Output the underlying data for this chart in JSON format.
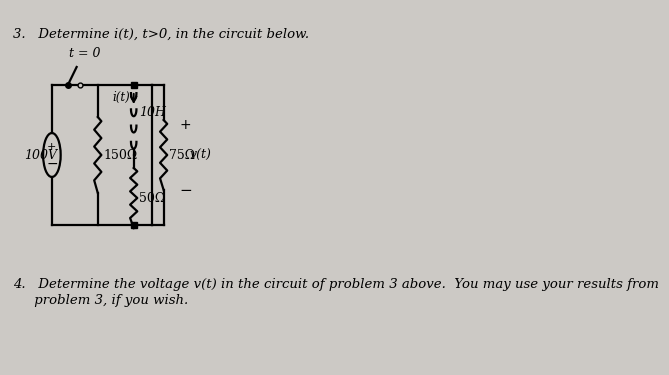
{
  "bg_color": "#ccc9c5",
  "problem3_text": "3.   Determine i(t), t>0, in the circuit below.",
  "problem4_text_line1": "4.   Determine the voltage v(t) in the circuit of problem 3 above.  You may use your results from",
  "problem4_text_line2": "     problem 3, if you wish.",
  "circuit": {
    "t0_label": "t = 0",
    "voltage_source": "100V",
    "r1_label": "150Ω",
    "inductor_label": "10H",
    "r2_label": "50Ω",
    "r3_label": "75Ω",
    "i_label": "i(t)",
    "v_label": "v(t)"
  }
}
